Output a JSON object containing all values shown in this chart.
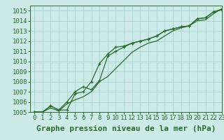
{
  "bg_color": "#cceae7",
  "line_color": "#2d6b2d",
  "grid_color": "#aad4cf",
  "title": "Graphe pression niveau de la mer (hPa)",
  "xlim": [
    -0.5,
    23
  ],
  "ylim": [
    1005,
    1015.5
  ],
  "xticks": [
    0,
    1,
    2,
    3,
    4,
    5,
    6,
    7,
    8,
    9,
    10,
    11,
    12,
    13,
    14,
    15,
    16,
    17,
    18,
    19,
    20,
    21,
    22,
    23
  ],
  "yticks": [
    1005,
    1006,
    1007,
    1008,
    1009,
    1010,
    1011,
    1012,
    1013,
    1014,
    1015
  ],
  "line1": [
    1005.0,
    1005.0,
    1005.6,
    1005.2,
    1005.2,
    1006.8,
    1007.0,
    1008.0,
    1009.8,
    1010.7,
    1011.4,
    1011.5,
    1011.8,
    1012.0,
    1012.2,
    1012.5,
    1013.0,
    1013.2,
    1013.4,
    1013.5,
    1014.2,
    1014.3,
    1014.9,
    1015.1
  ],
  "line2": [
    1005.0,
    1005.0,
    1005.6,
    1005.2,
    1006.0,
    1007.0,
    1007.5,
    1007.2,
    1008.1,
    1010.5,
    1011.0,
    1011.4,
    1011.8,
    1012.0,
    1012.2,
    1012.5,
    1013.0,
    1013.2,
    1013.4,
    1013.5,
    1014.2,
    1014.3,
    1014.9,
    1015.1
  ],
  "line3": [
    1005.0,
    1005.0,
    1005.4,
    1005.1,
    1005.8,
    1006.2,
    1006.5,
    1007.0,
    1008.0,
    1008.5,
    1009.3,
    1010.1,
    1010.9,
    1011.4,
    1011.8,
    1012.0,
    1012.5,
    1013.0,
    1013.3,
    1013.5,
    1014.0,
    1014.1,
    1014.7,
    1015.2
  ],
  "title_fontsize": 8,
  "tick_fontsize": 6.5
}
